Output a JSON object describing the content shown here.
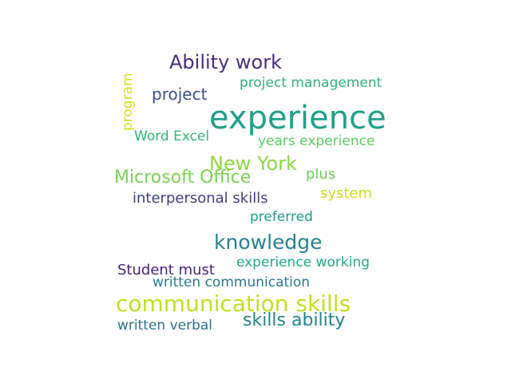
{
  "words": {
    "experience": {
      "text": "experience",
      "color": "#21a089"
    },
    "ability_work": {
      "text": "Ability work",
      "color": "#472f7d"
    },
    "project_management": {
      "text": "project management",
      "color": "#2db27d"
    },
    "program": {
      "text": "program",
      "color": "#d0e11c"
    },
    "project": {
      "text": "project",
      "color": "#3b518b"
    },
    "word_excel": {
      "text": "Word Excel",
      "color": "#2fb47c"
    },
    "years_experience": {
      "text": "years experience",
      "color": "#5ec962"
    },
    "new_york": {
      "text": "New York",
      "color": "#8fd744"
    },
    "microsoft_office": {
      "text": "Microsoft Office",
      "color": "#7ad151"
    },
    "plus": {
      "text": "plus",
      "color": "#6ccd5a"
    },
    "interpersonal_skills": {
      "text": "interpersonal skills",
      "color": "#433e85"
    },
    "system": {
      "text": "system",
      "color": "#c8e020"
    },
    "preferred": {
      "text": "preferred",
      "color": "#1f9e89"
    },
    "knowledge": {
      "text": "knowledge",
      "color": "#26828e"
    },
    "experience_working": {
      "text": "experience working",
      "color": "#22a884"
    },
    "student_must": {
      "text": "Student must",
      "color": "#482475"
    },
    "written_communication": {
      "text": "written communication",
      "color": "#2a788e"
    },
    "communication_skills": {
      "text": "communication skills",
      "color": "#c2df23"
    },
    "skills_ability": {
      "text": "skills ability",
      "color": "#25838e"
    },
    "written_verbal": {
      "text": "written verbal",
      "color": "#2c728e"
    }
  }
}
